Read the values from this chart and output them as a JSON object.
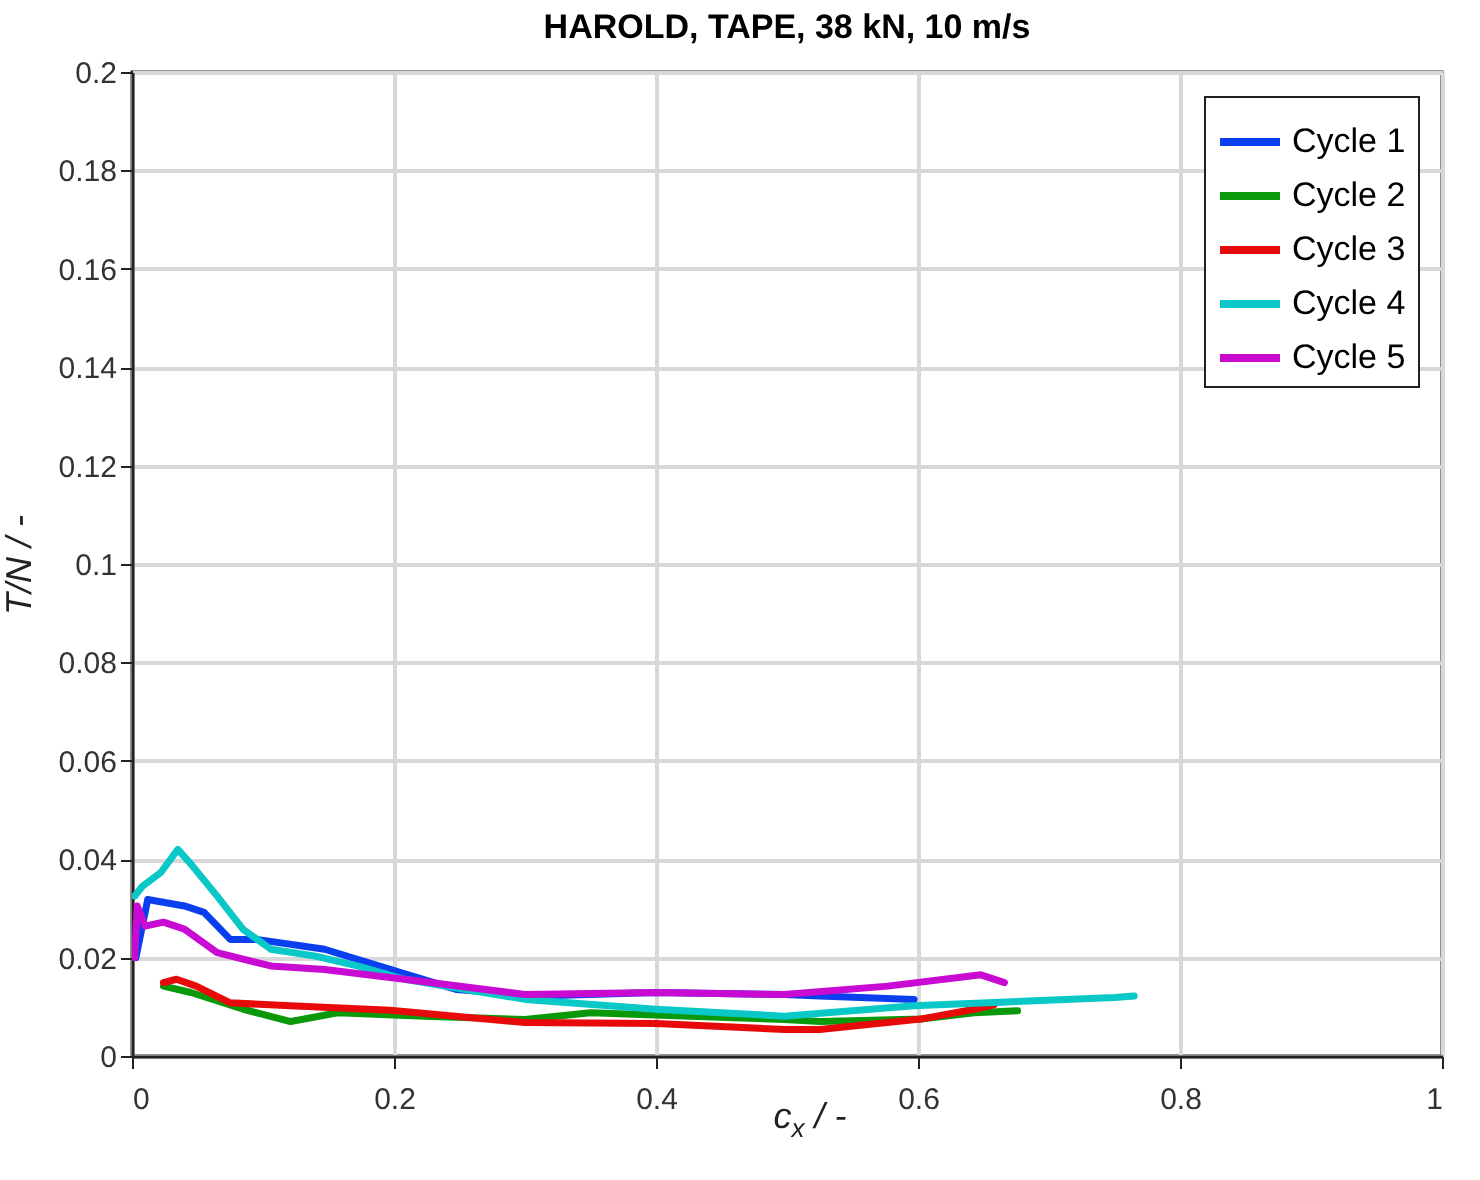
{
  "chart_data": {
    "type": "line",
    "title": "HAROLD, TAPE, 38 kN, 10 m/s",
    "xlabel": "c$_{x}$ / -",
    "ylabel": "T/N / -",
    "xlim": [
      0,
      1
    ],
    "ylim": [
      0,
      0.2
    ],
    "xticks": [
      0,
      0.2,
      0.4,
      0.6,
      0.8,
      1
    ],
    "yticks": [
      0,
      0.02,
      0.04,
      0.06,
      0.08,
      0.1,
      0.12,
      0.14,
      0.16,
      0.18,
      0.2
    ],
    "grid": true,
    "legend": "top right",
    "line_style": "solid",
    "series": [
      {
        "name": "Cycle 1",
        "color": "#0a3ff0",
        "x": [
          0.003,
          0.012,
          0.04,
          0.055,
          0.075,
          0.095,
          0.147,
          0.197,
          0.248,
          0.31,
          0.4,
          0.498,
          0.525,
          0.597
        ],
        "values": [
          0.02,
          0.0318,
          0.0305,
          0.0292,
          0.0237,
          0.0237,
          0.0217,
          0.0176,
          0.0135,
          0.0122,
          0.0129,
          0.0125,
          0.0122,
          0.0115
        ]
      },
      {
        "name": "Cycle 2",
        "color": "#0a990a",
        "x": [
          0.024,
          0.045,
          0.085,
          0.121,
          0.157,
          0.223,
          0.3,
          0.35,
          0.426,
          0.498,
          0.525,
          0.602,
          0.643,
          0.676
        ],
        "values": [
          0.0142,
          0.0129,
          0.0095,
          0.007,
          0.0088,
          0.0081,
          0.0074,
          0.0088,
          0.0081,
          0.0074,
          0.007,
          0.0075,
          0.0088,
          0.0092
        ]
      },
      {
        "name": "Cycle 3",
        "color": "#e80a0a",
        "x": [
          0.024,
          0.034,
          0.049,
          0.075,
          0.121,
          0.197,
          0.3,
          0.4,
          0.498,
          0.525,
          0.602,
          0.643,
          0.658
        ],
        "values": [
          0.0149,
          0.0156,
          0.0142,
          0.0108,
          0.0102,
          0.0093,
          0.0068,
          0.0066,
          0.0054,
          0.0054,
          0.0075,
          0.0095,
          0.0104
        ]
      },
      {
        "name": "Cycle 4",
        "color": "#0ac8c8",
        "x": [
          0.002,
          0.008,
          0.022,
          0.035,
          0.045,
          0.065,
          0.085,
          0.106,
          0.14,
          0.172,
          0.208,
          0.3,
          0.4,
          0.498,
          0.597,
          0.75,
          0.765
        ],
        "values": [
          0.0325,
          0.0345,
          0.0373,
          0.042,
          0.039,
          0.0325,
          0.0257,
          0.0217,
          0.0203,
          0.0183,
          0.0156,
          0.0115,
          0.0095,
          0.0081,
          0.0102,
          0.0119,
          0.0122
        ]
      },
      {
        "name": "Cycle 5",
        "color": "#c80ad2",
        "x": [
          0.002,
          0.004,
          0.01,
          0.024,
          0.04,
          0.065,
          0.106,
          0.147,
          0.208,
          0.3,
          0.4,
          0.498,
          0.577,
          0.648,
          0.666
        ],
        "values": [
          0.02,
          0.0305,
          0.0264,
          0.0272,
          0.0258,
          0.021,
          0.0183,
          0.0176,
          0.0156,
          0.0125,
          0.0129,
          0.0125,
          0.0142,
          0.0165,
          0.0149
        ]
      }
    ]
  }
}
